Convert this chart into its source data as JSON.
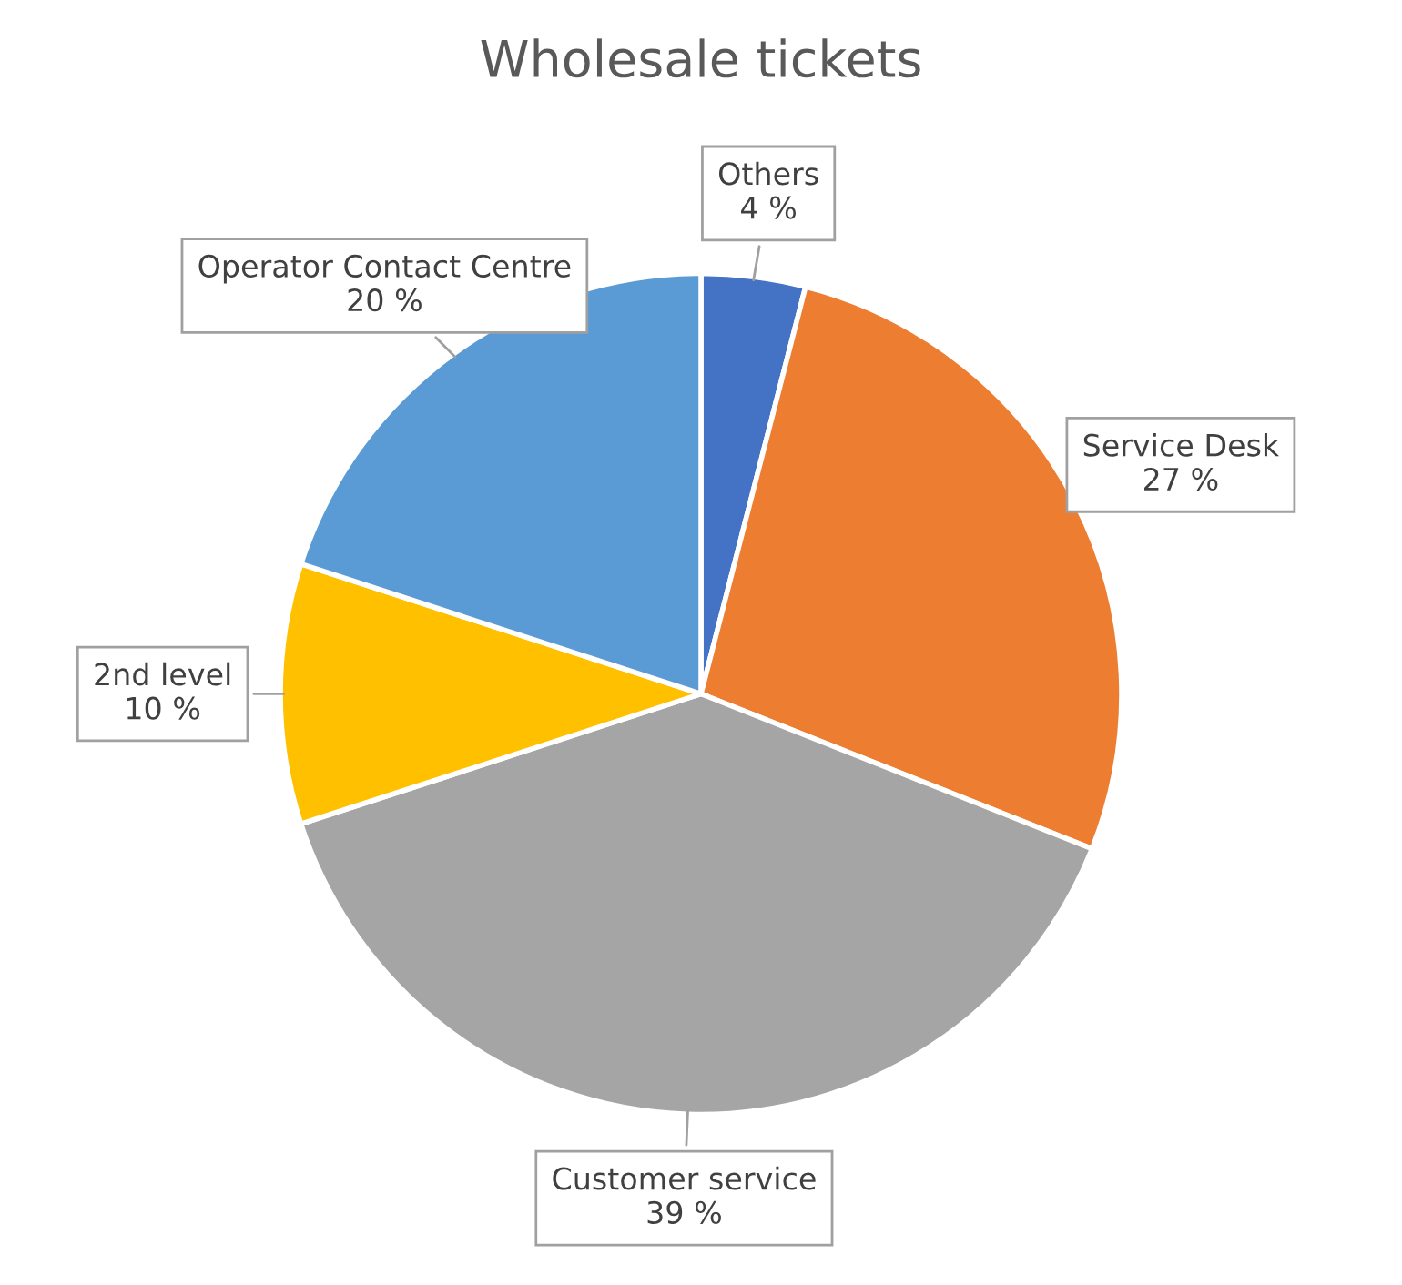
{
  "chart_data": {
    "type": "pie",
    "title": "Wholesale tickets",
    "categories": [
      "Others",
      "Service Desk",
      "Customer service",
      "2nd level",
      "Operator Contact Centre"
    ],
    "values": [
      4,
      27,
      39,
      10,
      20
    ],
    "value_labels": [
      "4 %",
      "27 %",
      "39 %",
      "10 %",
      "20 %"
    ],
    "colors": [
      "#4472c4",
      "#ed7d31",
      "#a5a5a5",
      "#ffc000",
      "#5b9bd5"
    ],
    "legend": false
  }
}
